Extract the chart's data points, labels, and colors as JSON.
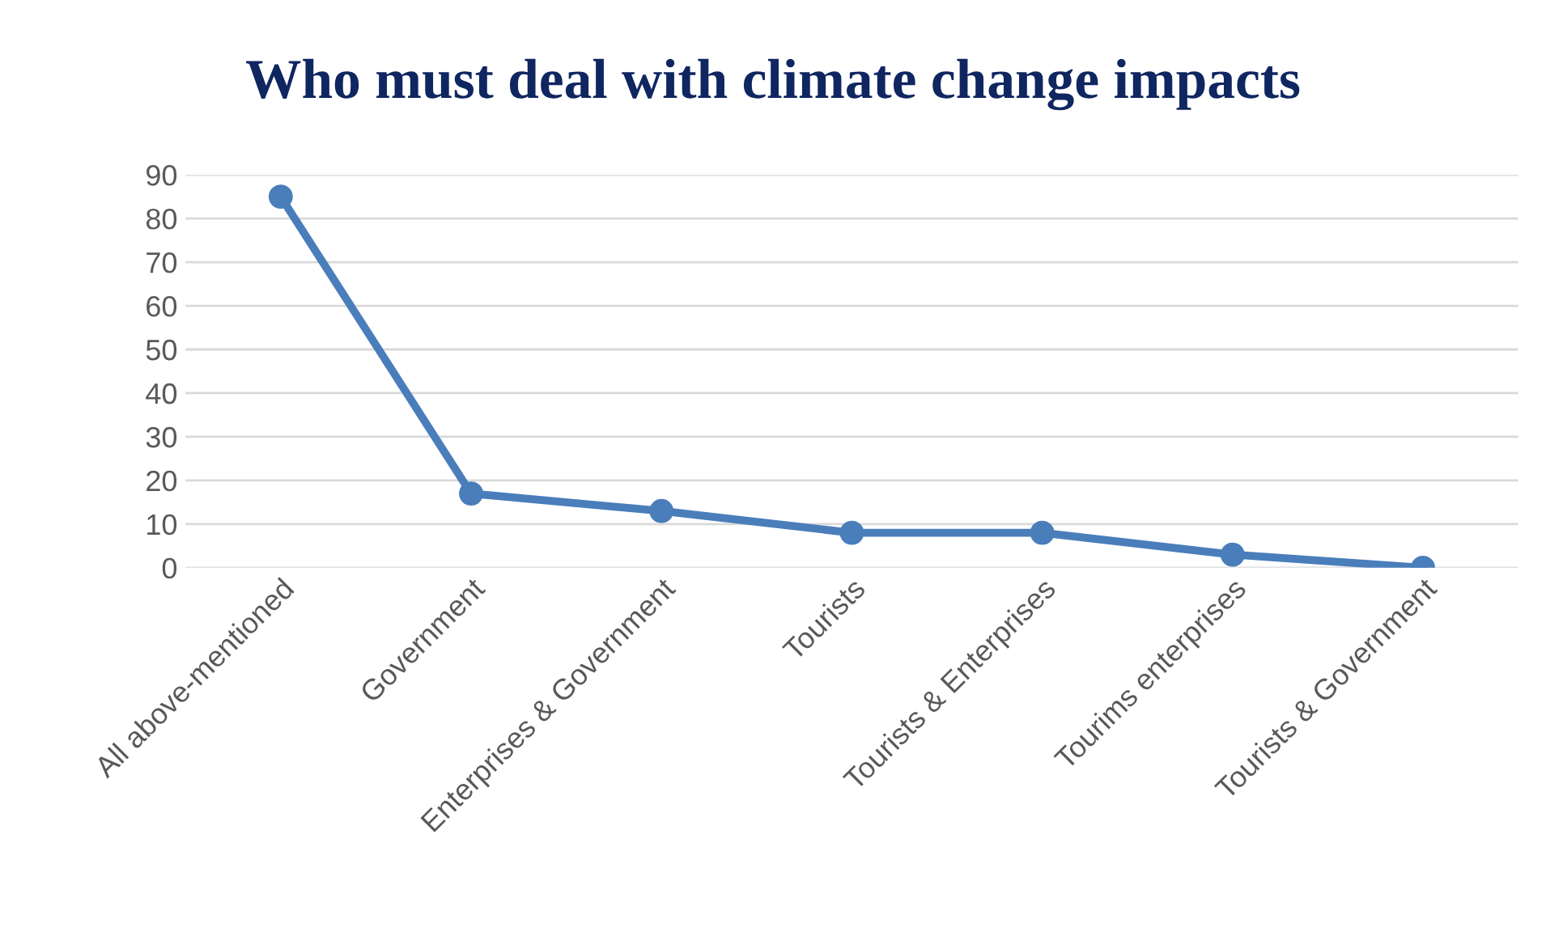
{
  "chart_data": {
    "type": "line",
    "title": "Who must deal with climate change impacts",
    "categories": [
      "All above-mentioned",
      "Government",
      "Enterprises & Government",
      "Tourists",
      "Tourists & Enterprises",
      "Tourims enterprises",
      "Tourists & Government"
    ],
    "series": [
      {
        "color": "#4a7ebb",
        "values": [
          85,
          17,
          13,
          8,
          8,
          3,
          0
        ]
      }
    ],
    "ylim": [
      0,
      90
    ],
    "yticks": [
      0,
      10,
      20,
      30,
      40,
      50,
      60,
      70,
      80,
      90
    ],
    "grid": "y",
    "marker": "circle",
    "line_style": "solid"
  }
}
